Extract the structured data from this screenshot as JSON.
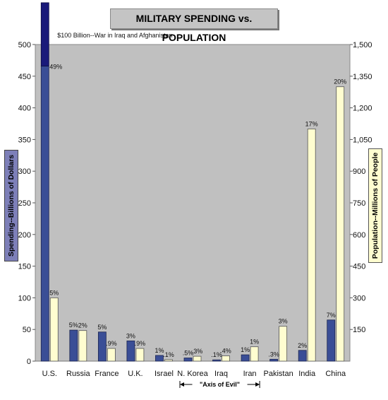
{
  "chart_data": {
    "type": "bar",
    "title": "MILITARY SPENDING vs. POPULATION",
    "categories": [
      "U.S.",
      "Russia",
      "France",
      "U.K.",
      "Israel",
      "N. Korea",
      "Iraq",
      "Iran",
      "Pakistan",
      "India",
      "China"
    ],
    "series": [
      {
        "axis": "left",
        "color": "#3a4e96",
        "values": [
          466,
          49,
          46,
          32,
          9,
          5,
          2,
          10,
          3,
          17,
          65
        ],
        "labels": [
          "49%",
          "5%",
          "5%",
          "3%",
          "1%",
          ".5%",
          ".1%",
          "1%",
          ".3%",
          "2%",
          "7%"
        ]
      },
      {
        "axis": "right",
        "color": "#fffdd0",
        "values": [
          300,
          145,
          60,
          60,
          7,
          23,
          25,
          68,
          165,
          1100,
          1300
        ],
        "labels": [
          "5%",
          "2%",
          ".9%",
          ".9%",
          ".1%",
          ".3%",
          ".4%",
          "1%",
          "3%",
          "17%",
          "20%"
        ]
      }
    ],
    "extra_bar": {
      "category": "U.S.",
      "value": 100,
      "color": "#1a1a7a",
      "label": "$100 Billion--War in Iraq and Afghanistan"
    },
    "ylabel": "Spending--Billions of Dollars",
    "ylabel_right": "Population--Millions of People",
    "ylim": [
      0,
      500
    ],
    "ylim_right": [
      0,
      1500
    ],
    "yticks": [
      "0",
      "50",
      "100",
      "150",
      "200",
      "250",
      "300",
      "350",
      "400",
      "450",
      "500"
    ],
    "yticks_right": [
      "150",
      "300",
      "450",
      "600",
      "750",
      "900",
      "1,050",
      "1,200",
      "1,350",
      "1,500"
    ],
    "annotation": "\"Axis of Evil\"",
    "annotation_span": [
      "N. Korea",
      "Iran"
    ],
    "plot_background": "#c0c0c0",
    "grid": false
  }
}
